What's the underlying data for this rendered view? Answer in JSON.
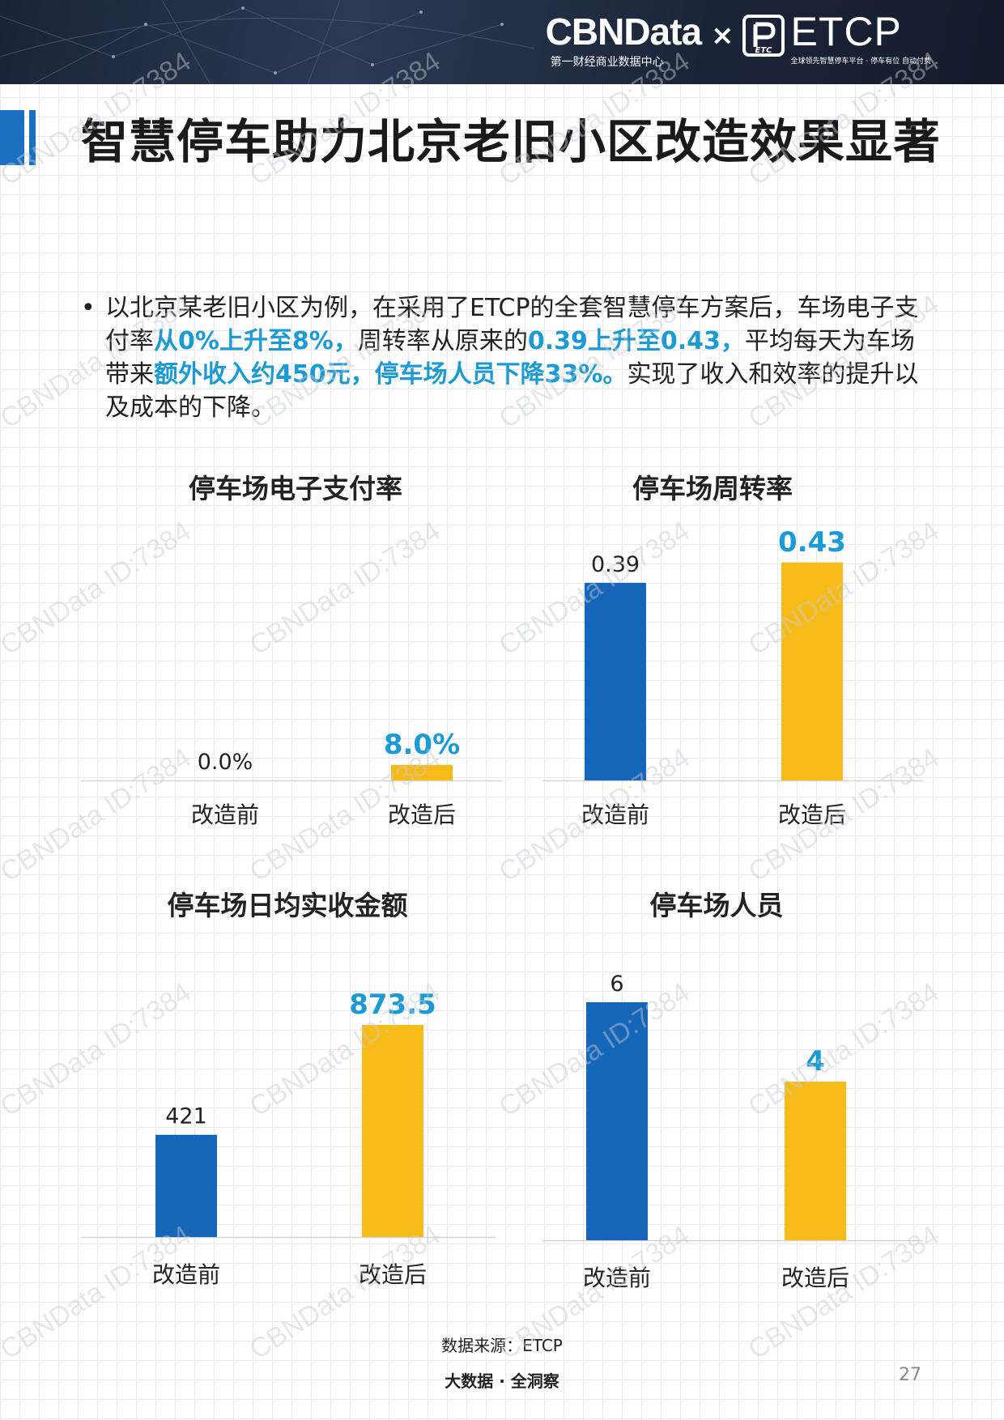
{
  "header": {
    "cbn_name": "CBNData",
    "cbn_sub": "第一财经商业数据中心",
    "times": "×",
    "etcp_logo_text": "ETC",
    "etcp_name": "ETCP",
    "etcp_sub": "全球领先智慧停车平台 · 停车有位 自动付费"
  },
  "page_title": "智慧停车助力北京老旧小区改造效果显著",
  "bullet": {
    "dot": "•",
    "t1": "以北京某老旧小区为例，在采用了ETCP的全套智慧停车方案后，车场电子支付率",
    "h1": "从0%上升至8%，",
    "t2": "周转率从原来的",
    "h2": "0.39上升至0.43，",
    "t3": "平均每天为车场带来",
    "h3": "额外收入约450元，停车场人员下降33%。",
    "t4": "实现了收入和效率的提升以及成本的下降。"
  },
  "colors": {
    "before": "#1565b8",
    "after": "#f7bb19",
    "highlight": "#1b9ad6",
    "label_dark": "#222222"
  },
  "chart_data": [
    {
      "type": "bar",
      "title": "停车场电子支付率",
      "categories": [
        "改造前",
        "改造后"
      ],
      "values": [
        0.0,
        8.0
      ],
      "labels": [
        "0.0%",
        "8.0%"
      ],
      "ylim": [
        0,
        10
      ]
    },
    {
      "type": "bar",
      "title": "停车场周转率",
      "categories": [
        "改造前",
        "改造后"
      ],
      "values": [
        0.39,
        0.43
      ],
      "labels": [
        "0.39",
        "0.43"
      ],
      "ylim": [
        0,
        0.5
      ]
    },
    {
      "type": "bar",
      "title": "停车场日均实收金额",
      "categories": [
        "改造前",
        "改造后"
      ],
      "values": [
        421,
        873.5
      ],
      "labels": [
        "421",
        "873.5"
      ],
      "ylim": [
        0,
        1000
      ]
    },
    {
      "type": "bar",
      "title": "停车场人员",
      "categories": [
        "改造前",
        "改造后"
      ],
      "values": [
        6,
        4
      ],
      "labels": [
        "6",
        "4"
      ],
      "ylim": [
        0,
        7
      ]
    }
  ],
  "source": "数据来源：ETCP",
  "footer_brand": "大数据 · 全洞察",
  "page_number": "27",
  "watermark": "CBNData ID:7384"
}
